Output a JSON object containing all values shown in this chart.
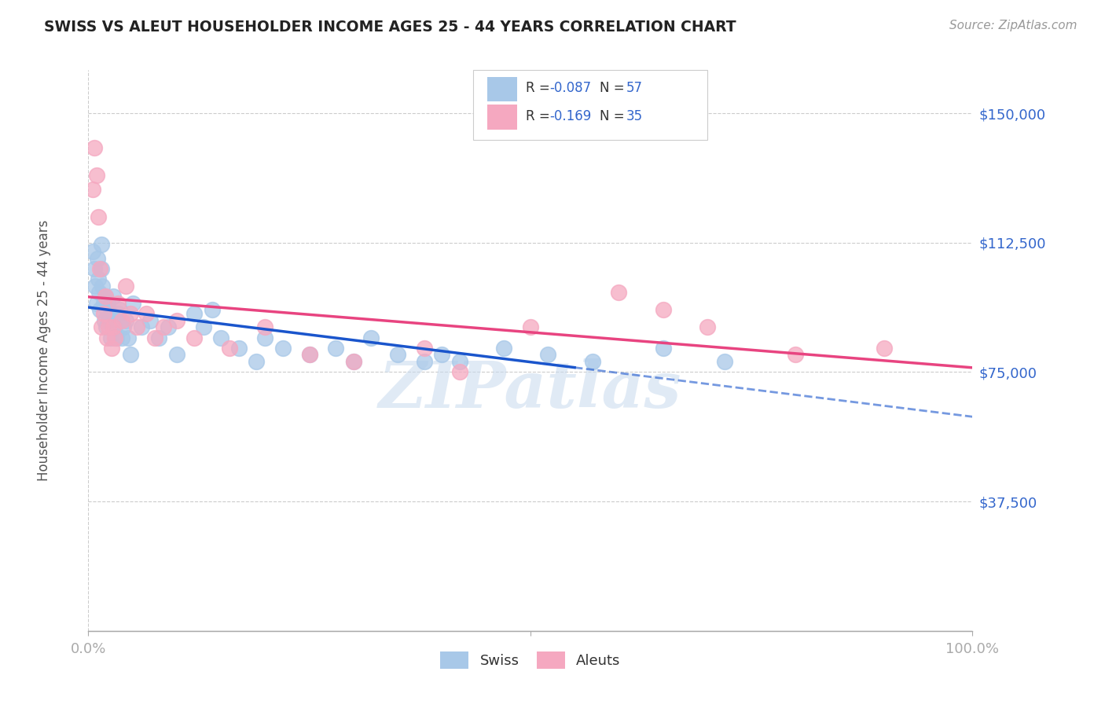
{
  "title": "SWISS VS ALEUT HOUSEHOLDER INCOME AGES 25 - 44 YEARS CORRELATION CHART",
  "source": "Source: ZipAtlas.com",
  "ylabel": "Householder Income Ages 25 - 44 years",
  "ytick_labels": [
    "$150,000",
    "$112,500",
    "$75,000",
    "$37,500"
  ],
  "ytick_values": [
    150000,
    112500,
    75000,
    37500
  ],
  "ymin": 0,
  "ymax": 162500,
  "xmin": 0.0,
  "xmax": 1.0,
  "swiss_r": "-0.087",
  "swiss_n": "57",
  "aleut_r": "-0.169",
  "aleut_n": "35",
  "swiss_color": "#a8c8e8",
  "aleut_color": "#f5a8c0",
  "swiss_line_color": "#1a55cc",
  "aleut_line_color": "#e84480",
  "grid_color": "#cccccc",
  "title_color": "#222222",
  "label_color": "#3366cc",
  "background_color": "#ffffff",
  "watermark": "ZIPatlas",
  "swiss_x": [
    0.005,
    0.007,
    0.008,
    0.009,
    0.01,
    0.011,
    0.012,
    0.013,
    0.015,
    0.015,
    0.016,
    0.017,
    0.018,
    0.019,
    0.02,
    0.021,
    0.022,
    0.023,
    0.025,
    0.026,
    0.028,
    0.03,
    0.032,
    0.033,
    0.035,
    0.038,
    0.04,
    0.042,
    0.045,
    0.048,
    0.05,
    0.06,
    0.07,
    0.08,
    0.09,
    0.1,
    0.12,
    0.13,
    0.14,
    0.15,
    0.17,
    0.19,
    0.2,
    0.22,
    0.25,
    0.28,
    0.3,
    0.32,
    0.35,
    0.38,
    0.4,
    0.42,
    0.47,
    0.52,
    0.57,
    0.65,
    0.72
  ],
  "swiss_y": [
    110000,
    105000,
    100000,
    95000,
    108000,
    102000,
    98000,
    93000,
    105000,
    112000,
    100000,
    95000,
    90000,
    97000,
    88000,
    93000,
    95000,
    90000,
    85000,
    92000,
    97000,
    88000,
    85000,
    92000,
    93000,
    85000,
    88000,
    90000,
    85000,
    80000,
    95000,
    88000,
    90000,
    85000,
    88000,
    80000,
    92000,
    88000,
    93000,
    85000,
    82000,
    78000,
    85000,
    82000,
    80000,
    82000,
    78000,
    85000,
    80000,
    78000,
    80000,
    78000,
    82000,
    80000,
    78000,
    82000,
    78000
  ],
  "aleut_x": [
    0.005,
    0.007,
    0.009,
    0.011,
    0.013,
    0.015,
    0.017,
    0.019,
    0.021,
    0.023,
    0.026,
    0.028,
    0.03,
    0.033,
    0.038,
    0.042,
    0.048,
    0.055,
    0.065,
    0.075,
    0.085,
    0.1,
    0.12,
    0.16,
    0.2,
    0.25,
    0.3,
    0.38,
    0.42,
    0.5,
    0.6,
    0.65,
    0.7,
    0.8,
    0.9
  ],
  "aleut_y": [
    128000,
    140000,
    132000,
    120000,
    105000,
    88000,
    92000,
    97000,
    85000,
    88000,
    82000,
    88000,
    85000,
    95000,
    90000,
    100000,
    92000,
    88000,
    92000,
    85000,
    88000,
    90000,
    85000,
    82000,
    88000,
    80000,
    78000,
    82000,
    75000,
    88000,
    98000,
    93000,
    88000,
    80000,
    82000
  ]
}
